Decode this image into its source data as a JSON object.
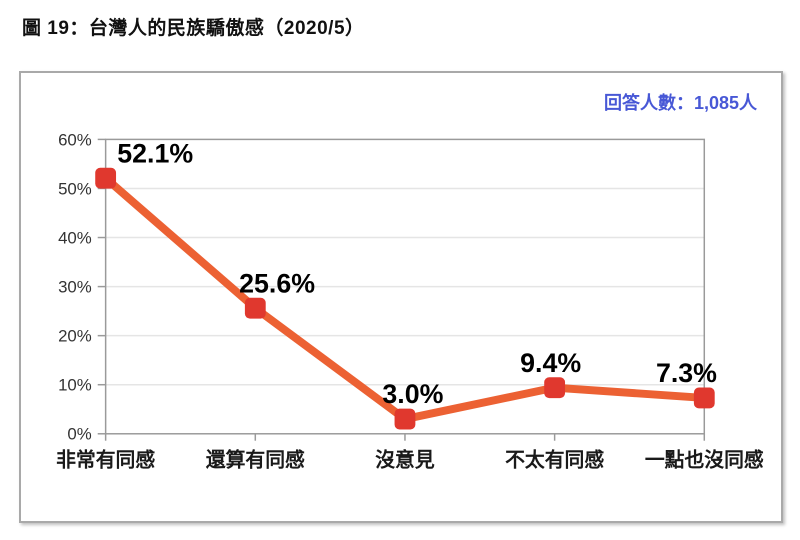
{
  "page": {
    "figure_title": "圖 19：台灣人的民族驕傲感（2020/5）"
  },
  "chart_data": {
    "type": "line",
    "title": "圖 19：台灣人的民族驕傲感（2020/5）",
    "annotation": "回答人數：1,085人",
    "categories": [
      "非常有同感",
      "還算有同感",
      "沒意見",
      "不太有同感",
      "一點也沒同感"
    ],
    "values": [
      52.1,
      25.6,
      3.0,
      9.4,
      7.3
    ],
    "value_labels": [
      "52.1%",
      "25.6%",
      "3.0%",
      "9.4%",
      "7.3%"
    ],
    "xlabel": "",
    "ylabel": "",
    "ylim": [
      0,
      60
    ],
    "ytick_step": 10,
    "ytick_labels": [
      "0%",
      "10%",
      "20%",
      "30%",
      "40%",
      "50%",
      "60%"
    ],
    "grid": true,
    "legend": "none",
    "colors": {
      "line": "#EC6133",
      "marker": "#E0382E",
      "data_label": "#000000",
      "annotation_text": "#4858D6",
      "axis_border": "#9a9a9a",
      "gridline": "#e5e5e5",
      "tick_label": "#333333",
      "category_label": "#1a1a1a"
    }
  }
}
